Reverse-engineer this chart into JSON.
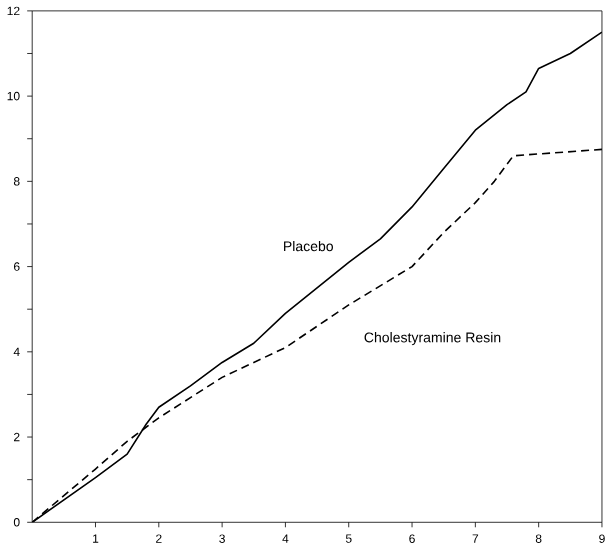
{
  "chart_data": {
    "type": "line",
    "xlim": [
      0,
      9
    ],
    "ylim": [
      0,
      12
    ],
    "xticks": [
      1,
      2,
      3,
      4,
      5,
      6,
      7,
      8,
      9
    ],
    "yticks": [
      0,
      {
        "value": 1,
        "label": null
      },
      2,
      {
        "value": 3,
        "label": null
      },
      4,
      {
        "value": 5,
        "label": null
      },
      6,
      {
        "value": 7,
        "label": null
      },
      8,
      {
        "value": 9,
        "label": null
      },
      10,
      {
        "value": 11,
        "label": null
      },
      12
    ],
    "marker": "none",
    "series": [
      {
        "name": "Placebo",
        "color": "#000000",
        "line_style": "solid",
        "x": [
          0,
          1,
          1.5,
          1.8,
          2,
          2.5,
          3,
          3.5,
          4,
          4.5,
          5,
          5.5,
          6,
          6.5,
          7,
          7.5,
          7.8,
          8,
          8.5,
          9
        ],
        "values": [
          0,
          1.05,
          1.6,
          2.3,
          2.7,
          3.2,
          3.75,
          4.2,
          4.9,
          5.5,
          6.1,
          6.65,
          7.4,
          8.3,
          9.2,
          9.8,
          10.1,
          10.65,
          11.0,
          11.5
        ]
      },
      {
        "name": "Cholestyramine Resin",
        "color": "#000000",
        "line_style": "dashed",
        "x": [
          0,
          1,
          1.5,
          2,
          3,
          4,
          5,
          6,
          6.5,
          7,
          7.3,
          7.6,
          9
        ],
        "values": [
          0,
          1.25,
          1.9,
          2.45,
          3.4,
          4.1,
          5.1,
          6.0,
          6.8,
          7.5,
          8.0,
          8.6,
          8.75
        ]
      }
    ]
  }
}
